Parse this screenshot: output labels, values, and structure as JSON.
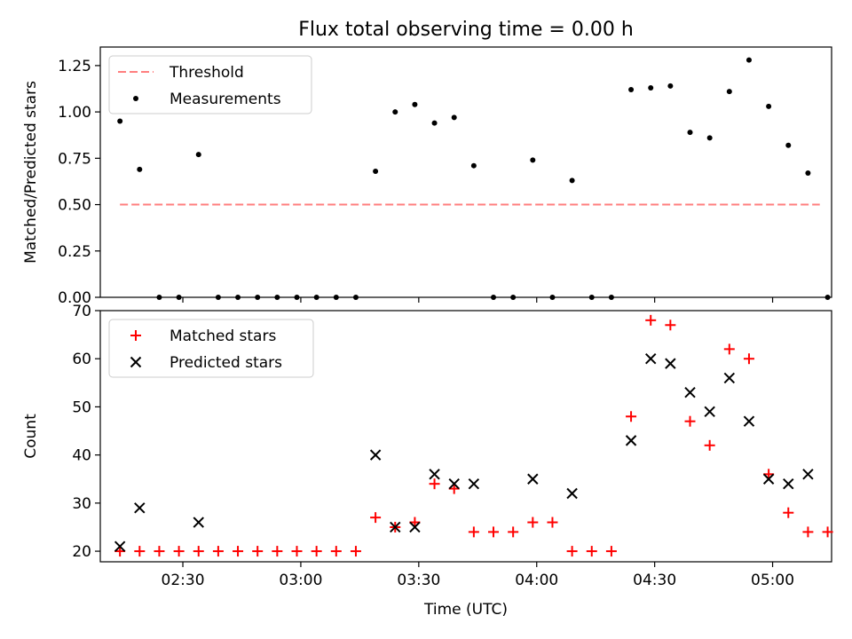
{
  "figure": {
    "title": "Flux total observing time = 0.00 h"
  },
  "chart_data": [
    {
      "type": "scatter",
      "ylabel": "Matched/Predicted stars",
      "xlabel": "",
      "ylim": [
        0,
        1.35
      ],
      "yticks": [
        0.0,
        0.25,
        0.5,
        0.75,
        1.0,
        1.25
      ],
      "ytick_labels": [
        "0.00",
        "0.25",
        "0.50",
        "0.75",
        "1.00",
        "1.25"
      ],
      "xlim": [
        "02:09",
        "05:15"
      ],
      "xticks": [
        "02:30",
        "03:00",
        "03:30",
        "04:00",
        "04:30",
        "05:00"
      ],
      "legend": {
        "placement": "upper-left",
        "entries": [
          "Threshold",
          "Measurements"
        ]
      },
      "threshold": {
        "name": "Threshold",
        "value": 0.5,
        "x_start": "02:14",
        "x_end": "05:12",
        "color": "#ff7f7f"
      },
      "series": [
        {
          "name": "Measurements",
          "marker": "dot",
          "color": "#000000",
          "points": [
            [
              "02:14",
              0.95
            ],
            [
              "02:19",
              0.69
            ],
            [
              "02:24",
              0.0
            ],
            [
              "02:29",
              0.0
            ],
            [
              "02:34",
              0.77
            ],
            [
              "02:39",
              0.0
            ],
            [
              "02:44",
              0.0
            ],
            [
              "02:49",
              0.0
            ],
            [
              "02:54",
              0.0
            ],
            [
              "02:59",
              0.0
            ],
            [
              "03:04",
              0.0
            ],
            [
              "03:09",
              0.0
            ],
            [
              "03:14",
              0.0
            ],
            [
              "03:19",
              0.68
            ],
            [
              "03:24",
              1.0
            ],
            [
              "03:29",
              1.04
            ],
            [
              "03:34",
              0.94
            ],
            [
              "03:39",
              0.97
            ],
            [
              "03:44",
              0.71
            ],
            [
              "03:49",
              0.0
            ],
            [
              "03:54",
              0.0
            ],
            [
              "03:59",
              0.74
            ],
            [
              "04:04",
              0.0
            ],
            [
              "04:09",
              0.63
            ],
            [
              "04:14",
              0.0
            ],
            [
              "04:19",
              0.0
            ],
            [
              "04:24",
              1.12
            ],
            [
              "04:29",
              1.13
            ],
            [
              "04:34",
              1.14
            ],
            [
              "04:39",
              0.89
            ],
            [
              "04:44",
              0.86
            ],
            [
              "04:49",
              1.11
            ],
            [
              "04:54",
              1.28
            ],
            [
              "04:59",
              1.03
            ],
            [
              "05:04",
              0.82
            ],
            [
              "05:09",
              0.67
            ],
            [
              "05:14",
              0.0
            ]
          ]
        }
      ]
    },
    {
      "type": "scatter",
      "ylabel": "Count",
      "xlabel": "Time (UTC)",
      "ylim": [
        17.8,
        70
      ],
      "yticks": [
        20,
        30,
        40,
        50,
        60,
        70
      ],
      "ytick_labels": [
        "20",
        "30",
        "40",
        "50",
        "60",
        "70"
      ],
      "xlim": [
        "02:09",
        "05:15"
      ],
      "xticks": [
        "02:30",
        "03:00",
        "03:30",
        "04:00",
        "04:30",
        "05:00"
      ],
      "xtick_labels": [
        "02:30",
        "03:00",
        "03:30",
        "04:00",
        "04:30",
        "05:00"
      ],
      "legend": {
        "placement": "upper-left",
        "entries": [
          "Matched stars",
          "Predicted stars"
        ]
      },
      "series": [
        {
          "name": "Matched stars",
          "marker": "plus",
          "color": "#ff0000",
          "points": [
            [
              "02:14",
              20
            ],
            [
              "02:19",
              20
            ],
            [
              "02:24",
              20
            ],
            [
              "02:29",
              20
            ],
            [
              "02:34",
              20
            ],
            [
              "02:39",
              20
            ],
            [
              "02:44",
              20
            ],
            [
              "02:49",
              20
            ],
            [
              "02:54",
              20
            ],
            [
              "02:59",
              20
            ],
            [
              "03:04",
              20
            ],
            [
              "03:09",
              20
            ],
            [
              "03:14",
              20
            ],
            [
              "03:19",
              27
            ],
            [
              "03:24",
              25
            ],
            [
              "03:29",
              26
            ],
            [
              "03:34",
              34
            ],
            [
              "03:39",
              33
            ],
            [
              "03:44",
              24
            ],
            [
              "03:49",
              24
            ],
            [
              "03:54",
              24
            ],
            [
              "03:59",
              26
            ],
            [
              "04:04",
              26
            ],
            [
              "04:09",
              20
            ],
            [
              "04:14",
              20
            ],
            [
              "04:19",
              20
            ],
            [
              "04:24",
              48
            ],
            [
              "04:29",
              68
            ],
            [
              "04:34",
              67
            ],
            [
              "04:39",
              47
            ],
            [
              "04:44",
              42
            ],
            [
              "04:49",
              62
            ],
            [
              "04:54",
              60
            ],
            [
              "04:59",
              36
            ],
            [
              "05:04",
              28
            ],
            [
              "05:09",
              24
            ],
            [
              "05:14",
              24
            ]
          ]
        },
        {
          "name": "Predicted stars",
          "marker": "x",
          "color": "#000000",
          "points": [
            [
              "02:14",
              21
            ],
            [
              "02:19",
              29
            ],
            [
              "02:34",
              26
            ],
            [
              "03:19",
              40
            ],
            [
              "03:24",
              25
            ],
            [
              "03:29",
              25
            ],
            [
              "03:34",
              36
            ],
            [
              "03:39",
              34
            ],
            [
              "03:44",
              34
            ],
            [
              "03:59",
              35
            ],
            [
              "04:09",
              32
            ],
            [
              "04:24",
              43
            ],
            [
              "04:29",
              60
            ],
            [
              "04:34",
              59
            ],
            [
              "04:39",
              53
            ],
            [
              "04:44",
              49
            ],
            [
              "04:49",
              56
            ],
            [
              "04:54",
              47
            ],
            [
              "04:59",
              35
            ],
            [
              "05:04",
              34
            ],
            [
              "05:09",
              36
            ]
          ]
        }
      ]
    }
  ]
}
